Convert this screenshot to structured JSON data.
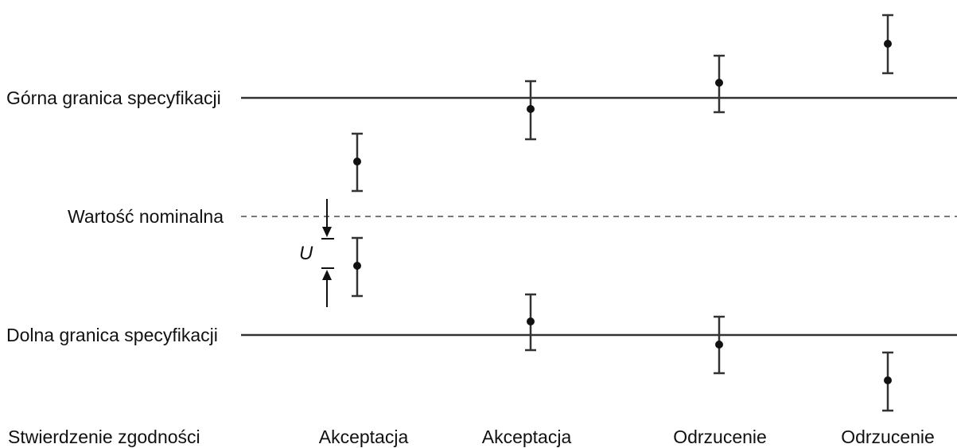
{
  "labels": {
    "upper_spec": "Górna granica specyfikacji",
    "nominal": "Wartość nominalna",
    "lower_spec": "Dolna granica specyfikacji",
    "uncertainty": "U",
    "conformity_heading": "Stwierdzenie zgodności"
  },
  "decisions": [
    {
      "label": "Akceptacja"
    },
    {
      "label": "Akceptacja"
    },
    {
      "label": "Odrzucenie"
    },
    {
      "label": "Odrzucenie"
    }
  ]
}
